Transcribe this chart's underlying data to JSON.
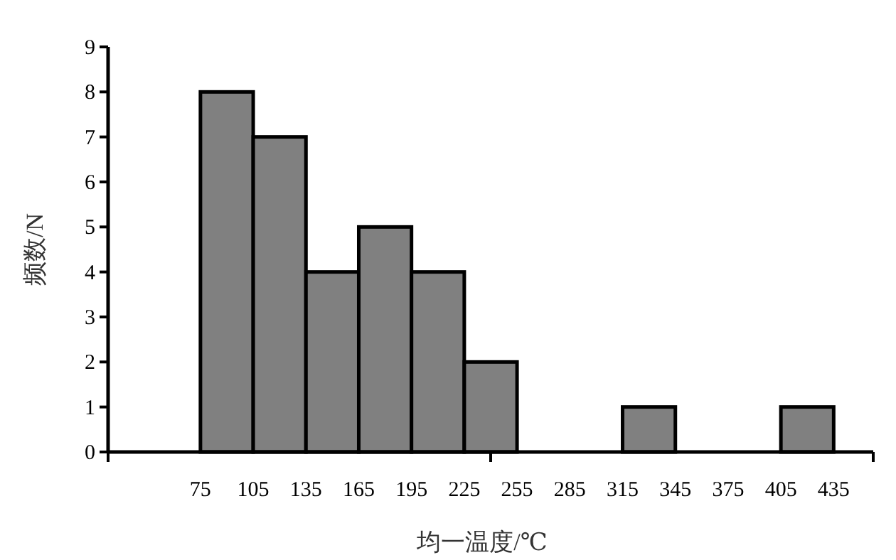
{
  "chart_data": {
    "type": "histogram",
    "xlabel": "均一温度/℃",
    "ylabel": "频数/N",
    "bins": [
      75,
      105,
      135,
      165,
      195,
      225,
      255,
      285,
      315,
      345,
      375,
      405,
      435
    ],
    "values": [
      8,
      7,
      4,
      5,
      4,
      2,
      0,
      0,
      1,
      0,
      0,
      1
    ],
    "color": "#808080",
    "xlim": [
      22.5,
      457.5
    ],
    "xticks": [
      {
        "value": 22.5,
        "label": null
      },
      75,
      105,
      135,
      165,
      195,
      225,
      {
        "value": 240,
        "label": null
      },
      255,
      285,
      315,
      345,
      375,
      405,
      435,
      {
        "value": 457.5,
        "label": null
      }
    ],
    "ylim": [
      0,
      9
    ],
    "yticks": [
      0,
      1,
      2,
      3,
      4,
      5,
      6,
      7,
      8,
      9
    ],
    "grid": false
  }
}
